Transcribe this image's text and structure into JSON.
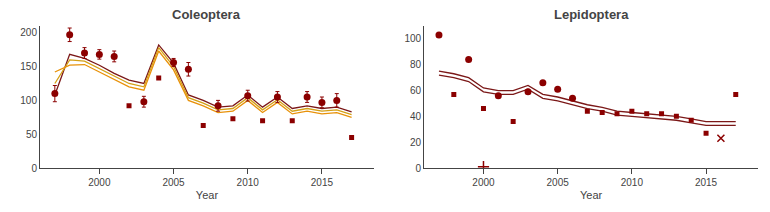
{
  "chart_data": [
    {
      "type": "line",
      "title": "Coleoptera",
      "xlabel": "Year",
      "xlim": [
        1996,
        2018.5
      ],
      "xticks": [
        2000,
        2005,
        2010,
        2015
      ],
      "ylim": [
        0,
        210
      ],
      "yticks": [
        0,
        50,
        100,
        150,
        200
      ],
      "grid": false,
      "series": [
        {
          "type": "line",
          "color": "#7B1818",
          "x": [
            1997,
            1998,
            1999,
            2000,
            2001,
            2002,
            2003,
            2004,
            2005,
            2006,
            2007,
            2008,
            2009,
            2010,
            2011,
            2012,
            2013,
            2014,
            2015,
            2016,
            2017
          ],
          "values": [
            108,
            168,
            162,
            152,
            140,
            130,
            125,
            182,
            155,
            108,
            100,
            90,
            92,
            108,
            90,
            105,
            88,
            92,
            88,
            90,
            83
          ]
        },
        {
          "type": "line",
          "color": "#D4A017",
          "x": [
            1997,
            1998,
            1999,
            2000,
            2001,
            2002,
            2003,
            2004,
            2005,
            2006,
            2007,
            2008,
            2009,
            2010,
            2011,
            2012,
            2013,
            2014,
            2015,
            2016,
            2017
          ],
          "values": [
            125,
            160,
            158,
            147,
            135,
            125,
            120,
            178,
            150,
            104,
            96,
            86,
            88,
            104,
            86,
            101,
            84,
            88,
            84,
            86,
            79
          ]
        },
        {
          "type": "line",
          "color": "#E8920A",
          "x": [
            1997,
            1998,
            1999,
            2000,
            2001,
            2002,
            2003,
            2004,
            2005,
            2006,
            2007,
            2008,
            2009,
            2010,
            2011,
            2012,
            2013,
            2014,
            2015,
            2016,
            2017
          ],
          "values": [
            142,
            152,
            153,
            142,
            130,
            120,
            115,
            173,
            145,
            100,
            92,
            82,
            84,
            100,
            82,
            97,
            80,
            84,
            80,
            82,
            75
          ]
        },
        {
          "type": "scatter",
          "marker": "circle",
          "color": "#8B0000",
          "x": [
            1997,
            1998,
            1999,
            2000,
            2001,
            2003,
            2005,
            2006,
            2008,
            2010,
            2012,
            2014,
            2015,
            2016
          ],
          "values": [
            110,
            197,
            170,
            168,
            165,
            98,
            156,
            146,
            92,
            107,
            105,
            105,
            97,
            100
          ],
          "yerr_low": [
            12,
            10,
            8,
            7,
            8,
            8,
            6,
            10,
            8,
            8,
            8,
            8,
            8,
            10
          ],
          "yerr_high": [
            12,
            10,
            8,
            7,
            8,
            8,
            6,
            10,
            8,
            8,
            8,
            8,
            8,
            10
          ]
        },
        {
          "type": "scatter",
          "marker": "square",
          "color": "#8B0000",
          "x": [
            2002,
            2004,
            2007,
            2009,
            2011,
            2013,
            2017
          ],
          "values": [
            92,
            133,
            63,
            73,
            70,
            70,
            45
          ]
        }
      ]
    },
    {
      "type": "line",
      "title": "Lepidoptera",
      "xlabel": "Year",
      "xlim": [
        1996,
        2018.5
      ],
      "xticks": [
        2000,
        2005,
        2010,
        2015
      ],
      "ylim": [
        0,
        110
      ],
      "yticks": [
        0,
        20,
        40,
        60,
        80,
        100
      ],
      "grid": false,
      "series": [
        {
          "type": "line",
          "color": "#7B1818",
          "x": [
            1997,
            1998,
            1999,
            2000,
            2001,
            2002,
            2003,
            2004,
            2005,
            2006,
            2007,
            2008,
            2009,
            2010,
            2011,
            2012,
            2013,
            2014,
            2015,
            2016,
            2017
          ],
          "values": [
            75,
            73,
            70,
            62,
            60,
            60,
            64,
            57,
            55,
            52,
            49,
            47,
            44,
            43,
            42,
            41,
            40,
            38,
            36,
            36,
            36
          ]
        },
        {
          "type": "line",
          "color": "#7B1818",
          "x": [
            1997,
            1998,
            1999,
            2000,
            2001,
            2002,
            2003,
            2004,
            2005,
            2006,
            2007,
            2008,
            2009,
            2010,
            2011,
            2012,
            2013,
            2014,
            2015,
            2016,
            2017
          ],
          "values": [
            72,
            70,
            67,
            59,
            57,
            57,
            61,
            54,
            52,
            49,
            46,
            44,
            41,
            40,
            39,
            38,
            37,
            35,
            33,
            33,
            33
          ]
        },
        {
          "type": "scatter",
          "marker": "circle",
          "color": "#8B0000",
          "x": [
            1997,
            1999,
            2001,
            2003,
            2004,
            2005,
            2006
          ],
          "values": [
            103,
            84,
            56,
            59,
            66,
            61,
            54
          ]
        },
        {
          "type": "scatter",
          "marker": "square",
          "color": "#8B0000",
          "x": [
            1998,
            2000,
            2002,
            2007,
            2008,
            2009,
            2010,
            2011,
            2012,
            2013,
            2014,
            2015,
            2017
          ],
          "values": [
            57,
            46,
            36,
            44,
            43,
            42,
            44,
            42,
            42,
            40,
            37,
            27,
            57
          ]
        },
        {
          "type": "scatter",
          "marker": "plus",
          "color": "#8B0000",
          "x": [
            2000
          ],
          "values": [
            1
          ]
        },
        {
          "type": "scatter",
          "marker": "x",
          "color": "#8B0000",
          "x": [
            2016
          ],
          "values": [
            23
          ]
        }
      ]
    }
  ]
}
